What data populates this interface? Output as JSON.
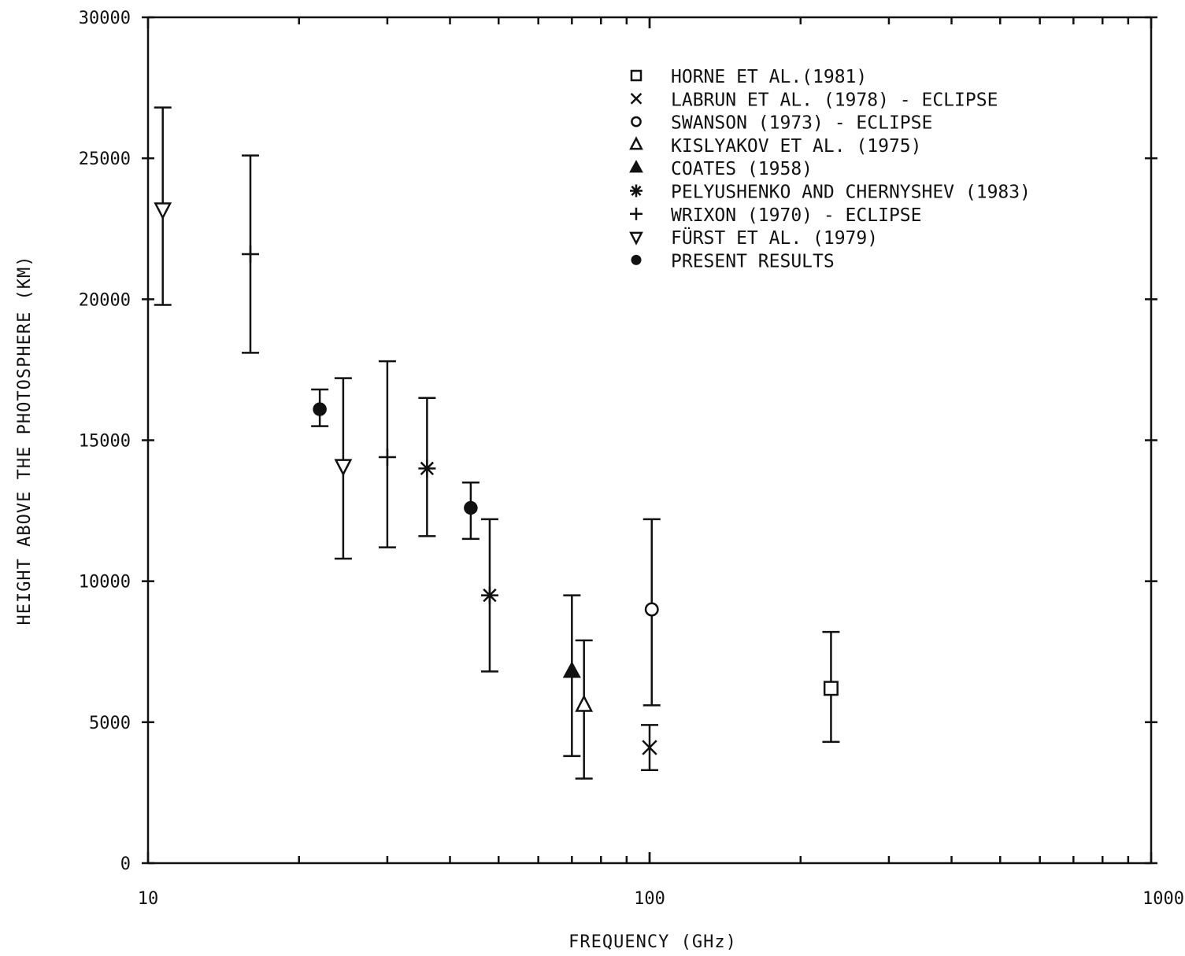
{
  "chart_data": {
    "type": "scatter",
    "xlabel": "FREQUENCY (GHz)",
    "ylabel": "HEIGHT ABOVE THE PHOTOSPHERE (KM)",
    "xscale": "log",
    "xlim": [
      10,
      1000
    ],
    "ylim": [
      0,
      30000
    ],
    "x_tick_labels": [
      "10",
      "100",
      "1000"
    ],
    "y_tick_labels": [
      "0",
      "5000",
      "10000",
      "15000",
      "20000",
      "25000",
      "30000"
    ],
    "grid": false,
    "legend_position": "top-right",
    "series": [
      {
        "name": "HORNE ET AL.(1981)",
        "marker": "open-square",
        "points": [
          {
            "x": 230,
            "y": 6200,
            "ylow": 4300,
            "yhigh": 8200
          }
        ]
      },
      {
        "name": "LABRUN ET AL. (1978) - ECLIPSE",
        "marker": "x",
        "points": [
          {
            "x": 100,
            "y": 4100,
            "ylow": 3300,
            "yhigh": 4900
          }
        ]
      },
      {
        "name": "SWANSON (1973) - ECLIPSE",
        "marker": "open-circle",
        "points": [
          {
            "x": 101,
            "y": 9000,
            "ylow": 5600,
            "yhigh": 12200
          }
        ]
      },
      {
        "name": "KISLYAKOV ET AL. (1975)",
        "marker": "open-triangle",
        "points": [
          {
            "x": 74,
            "y": 5600,
            "ylow": 3000,
            "yhigh": 7900
          }
        ]
      },
      {
        "name": "COATES (1958)",
        "marker": "filled-triangle",
        "points": [
          {
            "x": 70,
            "y": 6800,
            "ylow": 3800,
            "yhigh": 9500
          }
        ]
      },
      {
        "name": "PELYUSHENKO AND CHERNYSHEV (1983)",
        "marker": "asterisk",
        "points": [
          {
            "x": 36,
            "y": 14000,
            "ylow": 11600,
            "yhigh": 16500
          },
          {
            "x": 48,
            "y": 9500,
            "ylow": 6800,
            "yhigh": 12200
          }
        ]
      },
      {
        "name": "WRIXON (1970) - ECLIPSE",
        "marker": "plus",
        "points": [
          {
            "x": 16,
            "y": 21600,
            "ylow": 18100,
            "yhigh": 25100
          },
          {
            "x": 30,
            "y": 14400,
            "ylow": 11200,
            "yhigh": 17800
          }
        ]
      },
      {
        "name": "FÜRST ET AL. (1979)",
        "marker": "open-triangle-down",
        "points": [
          {
            "x": 10.7,
            "y": 23200,
            "ylow": 19800,
            "yhigh": 26800
          },
          {
            "x": 24.5,
            "y": 14100,
            "ylow": 10800,
            "yhigh": 17200
          }
        ]
      },
      {
        "name": "PRESENT RESULTS",
        "marker": "filled-circle",
        "points": [
          {
            "x": 22,
            "y": 16100,
            "ylow": 15500,
            "yhigh": 16800
          },
          {
            "x": 44,
            "y": 12600,
            "ylow": 11500,
            "yhigh": 13500
          }
        ]
      }
    ]
  }
}
